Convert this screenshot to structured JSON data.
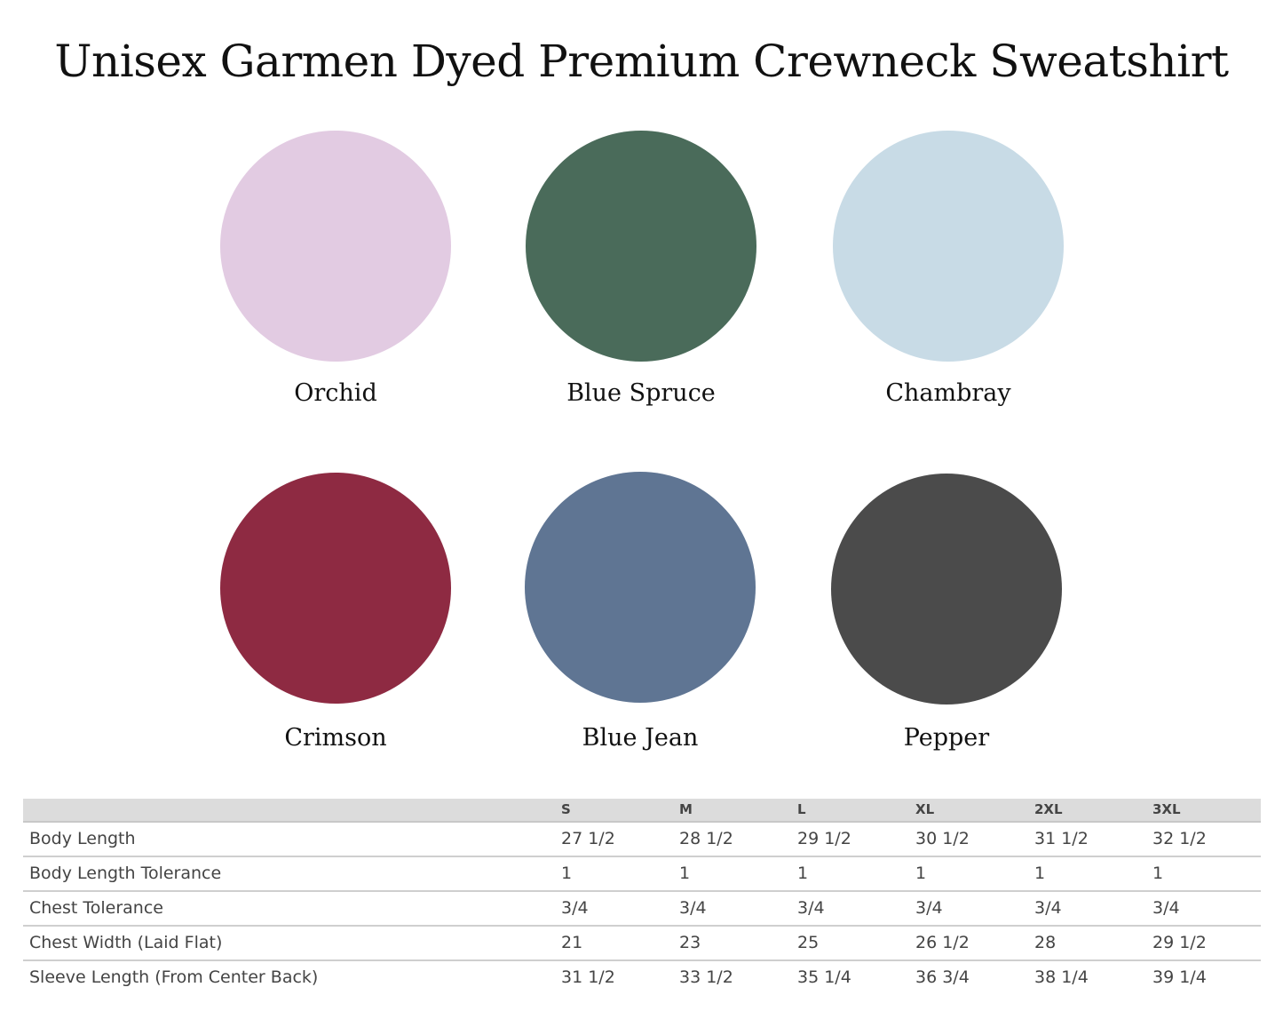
{
  "title": "Unisex Garmen Dyed Premium Crewneck Sweatshirt",
  "swatches": [
    {
      "name": "Orchid",
      "color": "#e2cbe2"
    },
    {
      "name": "Blue Spruce",
      "color": "#4a6b5a"
    },
    {
      "name": "Chambray",
      "color": "#c8dbe6"
    },
    {
      "name": "Crimson",
      "color": "#8e2a42"
    },
    {
      "name": "Blue Jean",
      "color": "#5f7593"
    },
    {
      "name": "Pepper",
      "color": "#4b4b4b"
    }
  ],
  "size_table": {
    "headers": [
      "",
      "S",
      "M",
      "L",
      "XL",
      "2XL",
      "3XL"
    ],
    "rows": [
      [
        "Body Length",
        "27 1/2",
        "28 1/2",
        "29 1/2",
        "30 1/2",
        "31 1/2",
        "32 1/2"
      ],
      [
        "Body Length Tolerance",
        "1",
        "1",
        "1",
        "1",
        "1",
        "1"
      ],
      [
        "Chest Tolerance",
        "3/4",
        "3/4",
        "3/4",
        "3/4",
        "3/4",
        "3/4"
      ],
      [
        "Chest Width (Laid Flat)",
        "21",
        "23",
        "25",
        "26 1/2",
        "28",
        "29 1/2"
      ],
      [
        "Sleeve Length (From Center Back)",
        "31 1/2",
        "33 1/2",
        "35 1/4",
        "36 3/4",
        "38 1/4",
        "39 1/4"
      ]
    ]
  }
}
